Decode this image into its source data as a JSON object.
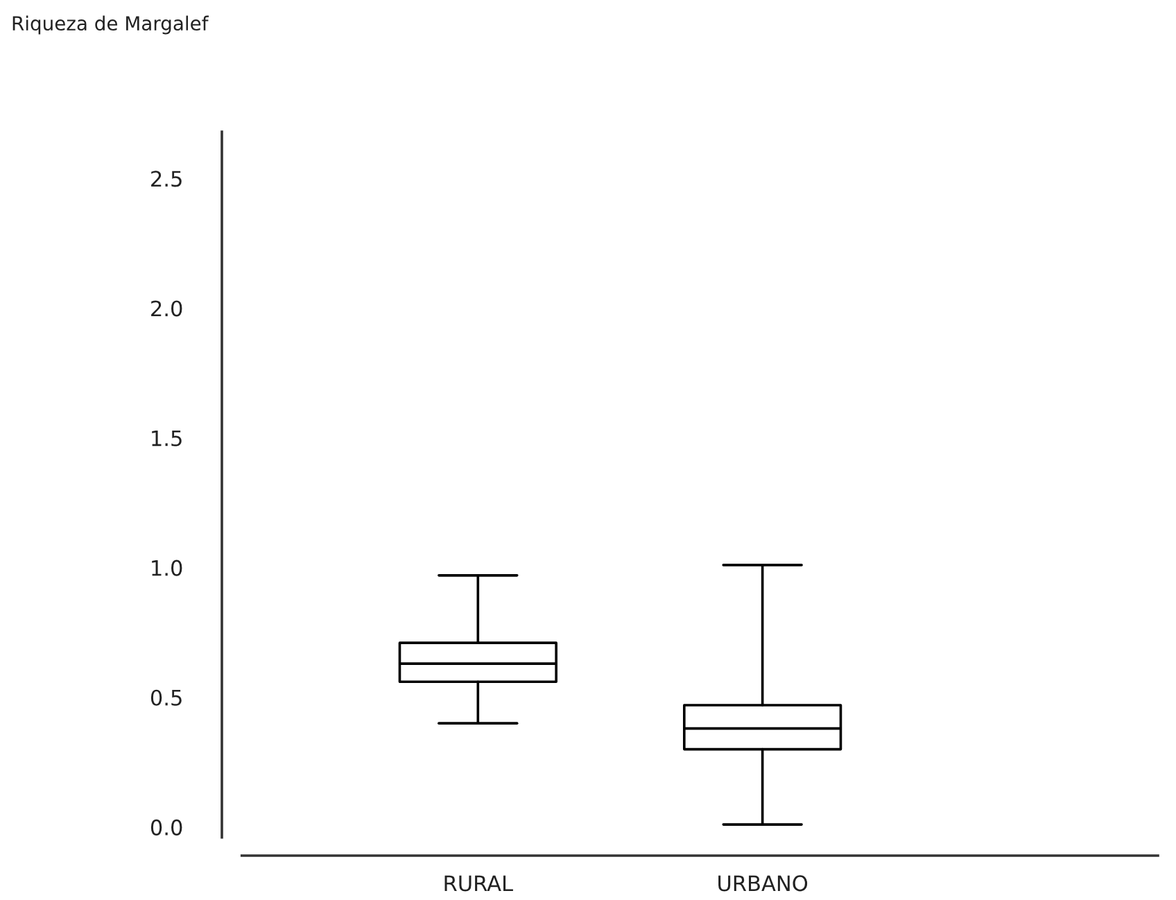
{
  "chart_data": {
    "type": "box",
    "title": "Riqueza de Margalef",
    "categories": [
      "RURAL",
      "URBANO"
    ],
    "boxes": [
      {
        "low": 0.4,
        "q1": 0.56,
        "median": 0.63,
        "q3": 0.71,
        "high": 0.97
      },
      {
        "low": 0.01,
        "q1": 0.3,
        "median": 0.38,
        "q3": 0.47,
        "high": 1.01
      }
    ],
    "ylim": [
      -0.11,
      2.68
    ],
    "yticks": [
      {
        "value": 0,
        "label": "0.0"
      },
      {
        "value": 0.5,
        "label": "0.5"
      },
      {
        "value": 1,
        "label": "1.0"
      },
      {
        "value": 1.5,
        "label": "1.5"
      },
      {
        "value": 2,
        "label": "2.0"
      },
      {
        "value": 2.5,
        "label": "2.5"
      }
    ],
    "grid": false
  }
}
